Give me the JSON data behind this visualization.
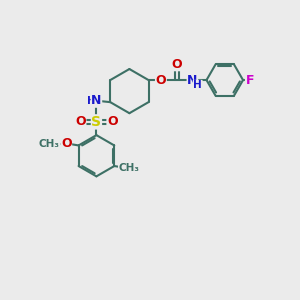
{
  "bg_color": "#ebebeb",
  "bond_color": "#3d7065",
  "bond_width": 1.5,
  "atom_colors": {
    "N": "#1a1acc",
    "O": "#cc0000",
    "S": "#cccc00",
    "F": "#cc00cc",
    "C": "#3d7065"
  },
  "layout": {
    "xlim": [
      0,
      10
    ],
    "ylim": [
      0,
      10
    ]
  }
}
